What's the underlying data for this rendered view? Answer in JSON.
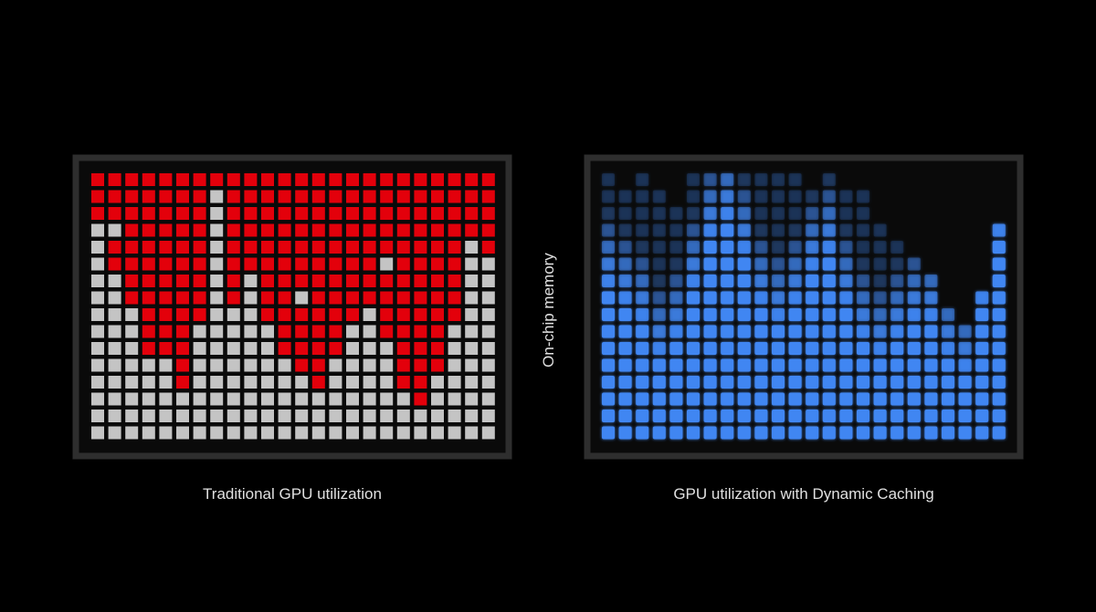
{
  "axis_label": "On-chip memory",
  "panels": [
    {
      "caption": "Traditional GPU utilization"
    },
    {
      "caption": "GPU utilization with Dynamic Caching"
    }
  ]
}
